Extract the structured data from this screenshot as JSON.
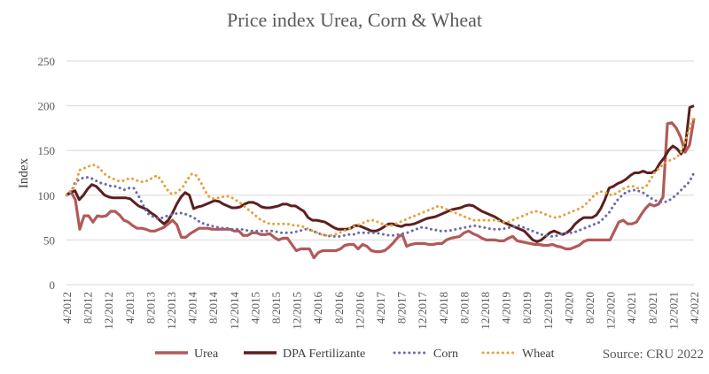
{
  "chart_data": {
    "type": "line",
    "title": "Price index Urea, Corn & Wheat",
    "ylabel": "Index",
    "xlabel": "",
    "ylim": [
      0,
      250
    ],
    "yticks": [
      0,
      50,
      100,
      150,
      200,
      250
    ],
    "grid": true,
    "legend_position": "bottom",
    "x_tick_labels": [
      "4/2012",
      "8/2012",
      "12/2012",
      "4/2013",
      "8/2013",
      "12/2013",
      "4/2014",
      "8/2014",
      "12/2014",
      "4/2015",
      "8/2015",
      "12/2015",
      "4/2016",
      "8/2016",
      "12/2016",
      "4/2017",
      "8/2017",
      "12/2017",
      "4/2018",
      "8/2018",
      "12/2018",
      "4/2019",
      "8/2019",
      "12/2019",
      "4/2020",
      "8/2020",
      "12/2020",
      "4/2021",
      "8/2021",
      "12/2021",
      "4/2022"
    ],
    "x_start": "4/2012",
    "x_end": "4/2022",
    "series": [
      {
        "name": "Urea",
        "color": "#b15a5a",
        "style": "solid",
        "values": [
          100,
          104,
          95,
          62,
          77,
          77,
          70,
          77,
          76,
          77,
          82,
          82,
          78,
          72,
          70,
          66,
          63,
          63,
          62,
          60,
          60,
          62,
          64,
          68,
          72,
          67,
          53,
          53,
          57,
          60,
          63,
          63,
          63,
          62,
          62,
          62,
          62,
          62,
          60,
          60,
          55,
          55,
          58,
          58,
          56,
          56,
          57,
          53,
          50,
          52,
          52,
          45,
          38,
          40,
          40,
          40,
          30,
          36,
          38,
          38,
          38,
          38,
          40,
          44,
          45,
          45,
          40,
          45,
          43,
          38,
          37,
          37,
          38,
          42,
          47,
          53,
          56,
          43,
          45,
          46,
          46,
          46,
          45,
          45,
          46,
          46,
          50,
          52,
          53,
          54,
          58,
          60,
          57,
          55,
          52,
          50,
          50,
          50,
          49,
          49,
          52,
          54,
          49,
          48,
          47,
          46,
          45,
          45,
          44,
          44,
          45,
          43,
          42,
          40,
          40,
          42,
          44,
          48,
          50,
          50,
          50,
          50,
          50,
          50,
          60,
          70,
          72,
          68,
          68,
          70,
          78,
          85,
          90,
          88,
          90,
          98,
          180,
          181,
          175,
          165,
          148,
          156,
          186
        ]
      },
      {
        "name": "DPA Fertilizante",
        "color": "#5c1f1f",
        "style": "solid",
        "values": [
          100,
          103,
          105,
          95,
          100,
          107,
          112,
          110,
          105,
          100,
          98,
          97,
          97,
          97,
          97,
          96,
          92,
          88,
          86,
          84,
          80,
          77,
          72,
          68,
          72,
          80,
          90,
          98,
          103,
          100,
          85,
          87,
          88,
          90,
          92,
          94,
          93,
          90,
          88,
          86,
          86,
          87,
          90,
          92,
          92,
          90,
          87,
          86,
          86,
          87,
          88,
          90,
          90,
          88,
          88,
          85,
          82,
          75,
          72,
          72,
          71,
          70,
          67,
          64,
          62,
          62,
          62,
          63,
          66,
          66,
          64,
          62,
          60,
          60,
          62,
          65,
          68,
          68,
          66,
          65,
          67,
          67,
          68,
          70,
          72,
          74,
          75,
          76,
          78,
          80,
          82,
          84,
          85,
          86,
          88,
          89,
          88,
          85,
          82,
          80,
          78,
          76,
          73,
          70,
          68,
          66,
          64,
          62,
          60,
          55,
          50,
          48,
          50,
          54,
          58,
          60,
          58,
          56,
          58,
          62,
          68,
          72,
          75,
          75,
          75,
          78,
          85,
          95,
          108,
          110,
          113,
          115,
          118,
          122,
          125,
          125,
          127,
          125,
          125,
          128,
          136,
          142,
          150,
          155,
          152,
          146,
          155,
          198,
          200
        ]
      },
      {
        "name": "Corn",
        "color": "#6b6bab",
        "style": "dotted",
        "values": [
          100,
          103,
          115,
          118,
          120,
          120,
          118,
          115,
          113,
          112,
          110,
          110,
          108,
          106,
          108,
          108,
          100,
          90,
          80,
          77,
          74,
          74,
          76,
          78,
          79,
          80,
          80,
          78,
          76,
          73,
          69,
          68,
          66,
          65,
          64,
          63,
          63,
          62,
          62,
          62,
          61,
          60,
          60,
          60,
          60,
          60,
          60,
          59,
          58,
          58,
          58,
          59,
          60,
          62,
          62,
          60,
          58,
          56,
          55,
          54,
          54,
          54,
          55,
          56,
          56,
          58,
          58,
          58,
          58,
          58,
          57,
          56,
          55,
          55,
          56,
          57,
          58,
          60,
          62,
          64,
          64,
          62,
          62,
          60,
          60,
          60,
          61,
          62,
          63,
          64,
          65,
          66,
          65,
          64,
          63,
          62,
          62,
          62,
          63,
          64,
          65,
          66,
          64,
          62,
          60,
          58,
          56,
          55,
          54,
          54,
          56,
          57,
          58,
          58,
          60,
          62,
          64,
          66,
          68,
          70,
          75,
          80,
          88,
          95,
          100,
          104,
          105,
          106,
          104,
          102,
          98,
          95,
          93,
          92,
          93,
          96,
          100,
          105,
          110,
          115,
          125
        ]
      },
      {
        "name": "Wheat",
        "color": "#e8a03c",
        "style": "dotted",
        "values": [
          100,
          105,
          110,
          128,
          130,
          132,
          134,
          133,
          128,
          123,
          120,
          118,
          116,
          116,
          118,
          119,
          117,
          115,
          115,
          117,
          120,
          122,
          116,
          108,
          102,
          102,
          105,
          110,
          118,
          124,
          122,
          115,
          105,
          98,
          96,
          97,
          98,
          99,
          98,
          95,
          92,
          88,
          84,
          80,
          76,
          72,
          70,
          68,
          68,
          68,
          68,
          68,
          67,
          66,
          66,
          64,
          62,
          60,
          58,
          56,
          55,
          55,
          56,
          58,
          60,
          62,
          64,
          66,
          68,
          70,
          72,
          72,
          70,
          68,
          66,
          66,
          68,
          70,
          72,
          74,
          76,
          78,
          80,
          82,
          84,
          86,
          88,
          86,
          84,
          82,
          80,
          78,
          76,
          74,
          72,
          72,
          72,
          72,
          72,
          72,
          71,
          70,
          70,
          72,
          74,
          76,
          78,
          80,
          82,
          82,
          80,
          78,
          76,
          75,
          76,
          78,
          80,
          82,
          84,
          86,
          90,
          95,
          100,
          104,
          104,
          102,
          100,
          102,
          105,
          108,
          110,
          110,
          108,
          108,
          110,
          118,
          126,
          130,
          135,
          138,
          140,
          142,
          148,
          160,
          175,
          188
        ]
      }
    ],
    "source": "Source: CRU 2022"
  }
}
